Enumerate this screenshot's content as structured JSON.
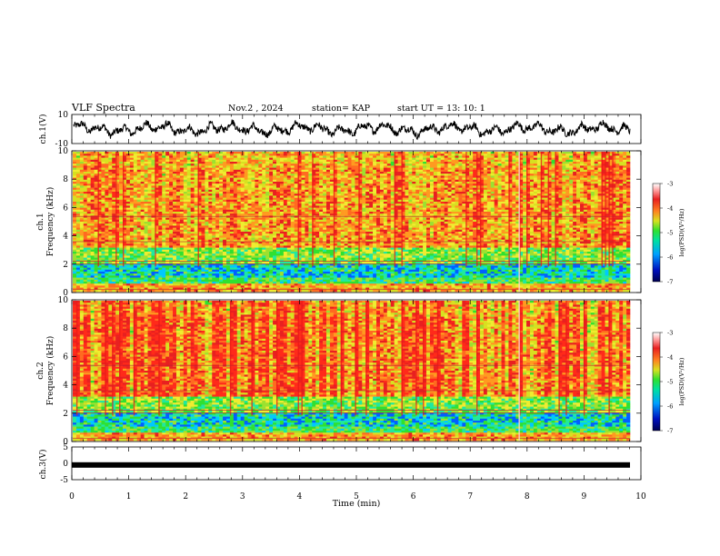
{
  "header": {
    "title": "VLF Spectra",
    "date": "Nov.2 , 2024",
    "station": "station= KAP",
    "start_ut": "start UT = 13: 10: 1"
  },
  "chart_data": [
    {
      "type": "line",
      "id": "ch1-waveform",
      "ylabel": "ch.1(V)",
      "ylim": [
        -10,
        10
      ],
      "yticks": [
        "10",
        "-10"
      ],
      "xlim": [
        0,
        10
      ],
      "description_series": "oscillating waveform, amplitude about ±6 V"
    },
    {
      "type": "heatmap",
      "id": "ch1-spectrogram",
      "ylabel": "ch.1 Frequency (kHz)",
      "ylim": [
        0,
        10
      ],
      "yticks": [
        "0",
        "2",
        "4",
        "6",
        "8",
        "10"
      ],
      "xlim": [
        0,
        9.8
      ],
      "colorbar": {
        "label": "log(PSD)(V²/Hz)",
        "range": [
          -7,
          -3
        ],
        "ticks": [
          "-3",
          "-4",
          "-5",
          "-6",
          "-7"
        ],
        "colors": [
          "#000080",
          "#0030ff",
          "#00c8ff",
          "#30e030",
          "#d8e020",
          "#ff6020",
          "#e02020",
          "#ffffff"
        ]
      }
    },
    {
      "type": "heatmap",
      "id": "ch2-spectrogram",
      "ylabel": "ch.2 Frequency (kHz)",
      "ylim": [
        0,
        10
      ],
      "yticks": [
        "0",
        "2",
        "4",
        "6",
        "8",
        "10"
      ],
      "xlim": [
        0,
        9.8
      ],
      "colorbar": {
        "label": "log(PSD)(V²/Hz)",
        "range": [
          -7,
          -3
        ],
        "ticks": [
          "-3",
          "-4",
          "-5",
          "-6",
          "-7"
        ]
      }
    },
    {
      "type": "line",
      "id": "ch3-waveform",
      "ylabel": "ch.3(V)",
      "ylim": [
        -5,
        5
      ],
      "yticks": [
        "5",
        "0",
        "-5"
      ],
      "xlim": [
        0,
        10
      ],
      "approx_value": -0.5
    }
  ],
  "xaxis": {
    "label": "Time (min)",
    "ticks": [
      "0",
      "1",
      "2",
      "3",
      "4",
      "5",
      "6",
      "7",
      "8",
      "9",
      "10"
    ]
  },
  "labels": {
    "ch1_v": "ch.1(V)",
    "ch1_freq_a": "ch.1",
    "ch1_freq_b": "Frequency (kHz)",
    "ch2_freq_a": "ch.2",
    "ch2_freq_b": "Frequency (kHz)",
    "ch3_v": "ch.3(V)",
    "colorbar_label": "log(PSD)(V²/Hz)"
  }
}
